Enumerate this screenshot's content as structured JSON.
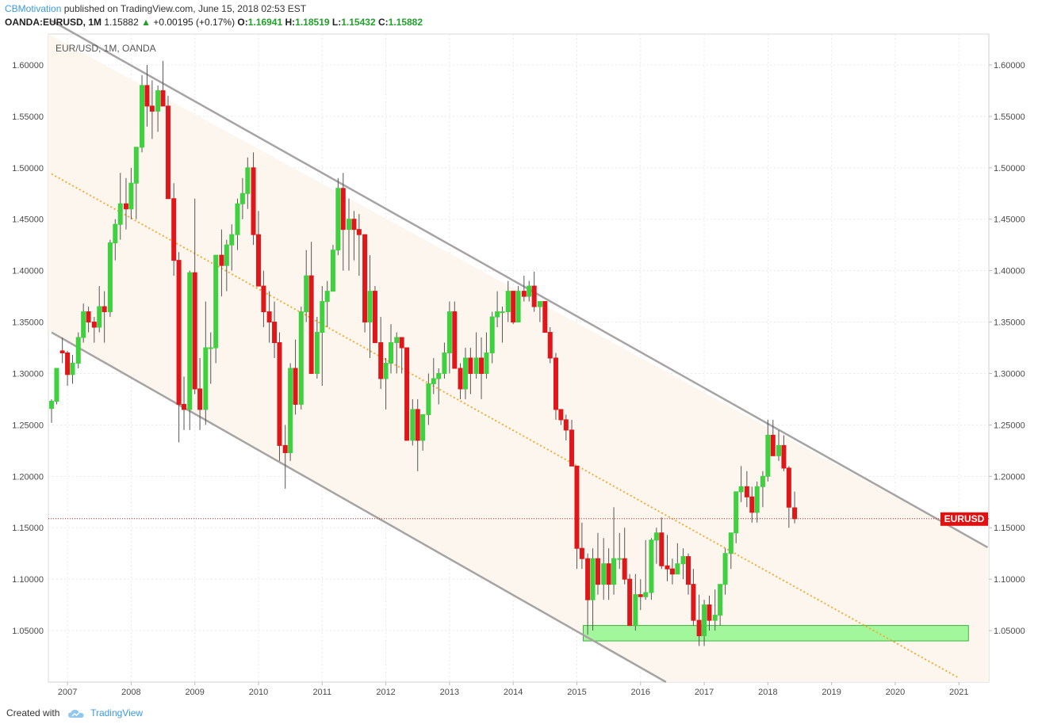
{
  "header": {
    "author": "CBMotivation",
    "published_text": "published on TradingView.com, June 15, 2018 02:53 EST",
    "symbol": "OANDA:EURUSD, 1M",
    "last": "1.15882",
    "change_arrow": "▲",
    "change": "+0.00195 (+0.17%)",
    "open_label": "O:",
    "open": "1.16941",
    "high_label": "H:",
    "high": "1.18519",
    "low_label": "L:",
    "low": "1.15432",
    "close_label": "C:",
    "close": "1.15882"
  },
  "footer": {
    "created_with": "Created with",
    "brand": "TradingView"
  },
  "chart_data": {
    "type": "candlestick",
    "title": "EUR/USD, 1M, OANDA",
    "x_tick_labels": [
      "2007",
      "2008",
      "2009",
      "2010",
      "2011",
      "2012",
      "2013",
      "2014",
      "2015",
      "2016",
      "2017",
      "2018",
      "2019",
      "2020",
      "2021"
    ],
    "y_tick_labels": [
      "1.60000",
      "1.55000",
      "1.50000",
      "1.45000",
      "1.40000",
      "1.35000",
      "1.30000",
      "1.25000",
      "1.20000",
      "1.15000",
      "1.10000",
      "1.05000"
    ],
    "y_ticks": [
      1.6,
      1.55,
      1.5,
      1.45,
      1.4,
      1.35,
      1.3,
      1.25,
      1.2,
      1.15,
      1.1,
      1.05
    ],
    "ylim": [
      1.0,
      1.63
    ],
    "xlim": [
      2006.7,
      2021.47
    ],
    "grid": true,
    "last_price": 1.15882,
    "price_tag": "EURUSD",
    "colors": {
      "up": "#3fd13f",
      "down": "#e0171a",
      "wick": "#555555",
      "channel": "#a7a3a3",
      "channel_fill": "#fcf6ef",
      "midline": "#f5a623",
      "zone_fill": "#a2f79c",
      "zone_border": "#3cb53c",
      "last_price_line": "#c81e1e",
      "tag_bg": "#e31010",
      "grid": "#e8e8e8",
      "axis_text": "#4a4a4a"
    },
    "channel_upper": {
      "x": [
        2006.75,
        2021.45
      ],
      "y": [
        1.643,
        1.131
      ]
    },
    "channel_lower": {
      "x": [
        2006.75,
        2016.4
      ],
      "y": [
        1.34,
        1.0
      ]
    },
    "midline": {
      "x": [
        2006.75,
        2021.0
      ],
      "y": [
        1.494,
        1.004
      ]
    },
    "support_zone": {
      "x": [
        2015.1,
        2021.15
      ],
      "y": [
        1.04,
        1.055
      ]
    },
    "candles": [
      [
        2006.75,
        1.266,
        1.275,
        1.252,
        1.273
      ],
      [
        2006.83,
        1.273,
        1.3,
        1.27,
        1.305
      ],
      [
        2006.92,
        1.322,
        1.335,
        1.31,
        1.32
      ],
      [
        2007.0,
        1.32,
        1.322,
        1.288,
        1.299
      ],
      [
        2007.08,
        1.299,
        1.318,
        1.29,
        1.31
      ],
      [
        2007.17,
        1.31,
        1.34,
        1.305,
        1.335
      ],
      [
        2007.25,
        1.335,
        1.368,
        1.33,
        1.36
      ],
      [
        2007.33,
        1.36,
        1.365,
        1.34,
        1.35
      ],
      [
        2007.42,
        1.35,
        1.355,
        1.33,
        1.345
      ],
      [
        2007.5,
        1.345,
        1.385,
        1.34,
        1.365
      ],
      [
        2007.58,
        1.365,
        1.38,
        1.33,
        1.36
      ],
      [
        2007.67,
        1.36,
        1.43,
        1.355,
        1.427
      ],
      [
        2007.75,
        1.427,
        1.45,
        1.41,
        1.445
      ],
      [
        2007.83,
        1.445,
        1.495,
        1.43,
        1.465
      ],
      [
        2007.92,
        1.465,
        1.49,
        1.44,
        1.46
      ],
      [
        2008.0,
        1.46,
        1.5,
        1.45,
        1.485
      ],
      [
        2008.08,
        1.485,
        1.52,
        1.45,
        1.52
      ],
      [
        2008.17,
        1.52,
        1.59,
        1.515,
        1.58
      ],
      [
        2008.25,
        1.58,
        1.6,
        1.54,
        1.56
      ],
      [
        2008.33,
        1.56,
        1.585,
        1.528,
        1.555
      ],
      [
        2008.42,
        1.555,
        1.58,
        1.535,
        1.575
      ],
      [
        2008.5,
        1.575,
        1.604,
        1.56,
        1.56
      ],
      [
        2008.58,
        1.56,
        1.57,
        1.47,
        1.47
      ],
      [
        2008.67,
        1.47,
        1.485,
        1.395,
        1.41
      ],
      [
        2008.75,
        1.41,
        1.418,
        1.233,
        1.27
      ],
      [
        2008.83,
        1.27,
        1.297,
        1.245,
        1.265
      ],
      [
        2008.92,
        1.265,
        1.4,
        1.245,
        1.398
      ],
      [
        2009.0,
        1.398,
        1.47,
        1.28,
        1.285
      ],
      [
        2009.08,
        1.285,
        1.315,
        1.245,
        1.265
      ],
      [
        2009.17,
        1.265,
        1.37,
        1.25,
        1.325
      ],
      [
        2009.25,
        1.325,
        1.34,
        1.29,
        1.325
      ],
      [
        2009.33,
        1.325,
        1.415,
        1.31,
        1.415
      ],
      [
        2009.42,
        1.415,
        1.44,
        1.375,
        1.405
      ],
      [
        2009.5,
        1.405,
        1.43,
        1.38,
        1.425
      ],
      [
        2009.58,
        1.425,
        1.445,
        1.4,
        1.435
      ],
      [
        2009.67,
        1.435,
        1.47,
        1.42,
        1.465
      ],
      [
        2009.75,
        1.465,
        1.49,
        1.45,
        1.475
      ],
      [
        2009.83,
        1.475,
        1.51,
        1.46,
        1.5
      ],
      [
        2009.92,
        1.5,
        1.515,
        1.425,
        1.435
      ],
      [
        2010.0,
        1.435,
        1.458,
        1.385,
        1.385
      ],
      [
        2010.08,
        1.385,
        1.4,
        1.345,
        1.36
      ],
      [
        2010.17,
        1.36,
        1.38,
        1.33,
        1.35
      ],
      [
        2010.25,
        1.35,
        1.37,
        1.315,
        1.33
      ],
      [
        2010.33,
        1.33,
        1.34,
        1.215,
        1.23
      ],
      [
        2010.42,
        1.23,
        1.25,
        1.188,
        1.223
      ],
      [
        2010.5,
        1.223,
        1.31,
        1.215,
        1.305
      ],
      [
        2010.58,
        1.305,
        1.333,
        1.26,
        1.27
      ],
      [
        2010.67,
        1.27,
        1.365,
        1.265,
        1.36
      ],
      [
        2010.75,
        1.36,
        1.42,
        1.35,
        1.395
      ],
      [
        2010.83,
        1.395,
        1.428,
        1.3,
        1.3
      ],
      [
        2010.92,
        1.3,
        1.355,
        1.295,
        1.34
      ],
      [
        2011.0,
        1.34,
        1.385,
        1.288,
        1.37
      ],
      [
        2011.08,
        1.37,
        1.39,
        1.345,
        1.38
      ],
      [
        2011.17,
        1.38,
        1.425,
        1.38,
        1.42
      ],
      [
        2011.25,
        1.42,
        1.49,
        1.415,
        1.48
      ],
      [
        2011.33,
        1.48,
        1.495,
        1.4,
        1.44
      ],
      [
        2011.42,
        1.44,
        1.47,
        1.4,
        1.45
      ],
      [
        2011.5,
        1.45,
        1.458,
        1.41,
        1.44
      ],
      [
        2011.58,
        1.44,
        1.455,
        1.395,
        1.435
      ],
      [
        2011.67,
        1.435,
        1.435,
        1.34,
        1.35
      ],
      [
        2011.75,
        1.35,
        1.415,
        1.315,
        1.38
      ],
      [
        2011.83,
        1.38,
        1.385,
        1.33,
        1.33
      ],
      [
        2011.92,
        1.33,
        1.355,
        1.285,
        1.295
      ],
      [
        2012.0,
        1.295,
        1.315,
        1.265,
        1.31
      ],
      [
        2012.08,
        1.31,
        1.348,
        1.3,
        1.33
      ],
      [
        2012.17,
        1.33,
        1.34,
        1.3,
        1.335
      ],
      [
        2012.25,
        1.335,
        1.33,
        1.3,
        1.325
      ],
      [
        2012.33,
        1.325,
        1.325,
        1.235,
        1.235
      ],
      [
        2012.42,
        1.235,
        1.275,
        1.23,
        1.265
      ],
      [
        2012.5,
        1.265,
        1.275,
        1.205,
        1.235
      ],
      [
        2012.58,
        1.235,
        1.26,
        1.225,
        1.26
      ],
      [
        2012.67,
        1.26,
        1.3,
        1.25,
        1.29
      ],
      [
        2012.75,
        1.29,
        1.315,
        1.28,
        1.295
      ],
      [
        2012.83,
        1.295,
        1.305,
        1.27,
        1.3
      ],
      [
        2012.92,
        1.3,
        1.33,
        1.295,
        1.32
      ],
      [
        2013.0,
        1.32,
        1.37,
        1.3,
        1.36
      ],
      [
        2013.08,
        1.36,
        1.37,
        1.305,
        1.305
      ],
      [
        2013.17,
        1.305,
        1.31,
        1.275,
        1.285
      ],
      [
        2013.25,
        1.285,
        1.325,
        1.275,
        1.315
      ],
      [
        2013.33,
        1.315,
        1.325,
        1.28,
        1.3
      ],
      [
        2013.42,
        1.3,
        1.34,
        1.295,
        1.315
      ],
      [
        2013.5,
        1.315,
        1.335,
        1.275,
        1.3
      ],
      [
        2013.58,
        1.3,
        1.34,
        1.295,
        1.32
      ],
      [
        2013.67,
        1.32,
        1.36,
        1.31,
        1.355
      ],
      [
        2013.75,
        1.355,
        1.38,
        1.345,
        1.36
      ],
      [
        2013.83,
        1.36,
        1.365,
        1.33,
        1.36
      ],
      [
        2013.92,
        1.36,
        1.39,
        1.35,
        1.38
      ],
      [
        2014.0,
        1.38,
        1.38,
        1.348,
        1.35
      ],
      [
        2014.08,
        1.35,
        1.385,
        1.35,
        1.38
      ],
      [
        2014.17,
        1.38,
        1.395,
        1.37,
        1.375
      ],
      [
        2014.25,
        1.375,
        1.39,
        1.37,
        1.385
      ],
      [
        2014.33,
        1.385,
        1.399,
        1.36,
        1.365
      ],
      [
        2014.42,
        1.365,
        1.37,
        1.35,
        1.37
      ],
      [
        2014.5,
        1.37,
        1.37,
        1.34,
        1.34
      ],
      [
        2014.58,
        1.34,
        1.345,
        1.31,
        1.315
      ],
      [
        2014.67,
        1.315,
        1.32,
        1.255,
        1.265
      ],
      [
        2014.75,
        1.265,
        1.265,
        1.25,
        1.255
      ],
      [
        2014.83,
        1.255,
        1.26,
        1.235,
        1.245
      ],
      [
        2014.92,
        1.245,
        1.255,
        1.21,
        1.21
      ],
      [
        2015.0,
        1.21,
        1.21,
        1.11,
        1.13
      ],
      [
        2015.08,
        1.13,
        1.155,
        1.11,
        1.12
      ],
      [
        2015.17,
        1.12,
        1.125,
        1.046,
        1.08
      ],
      [
        2015.25,
        1.08,
        1.13,
        1.05,
        1.12
      ],
      [
        2015.33,
        1.12,
        1.145,
        1.085,
        1.095
      ],
      [
        2015.42,
        1.095,
        1.14,
        1.08,
        1.115
      ],
      [
        2015.5,
        1.115,
        1.13,
        1.08,
        1.095
      ],
      [
        2015.58,
        1.095,
        1.17,
        1.085,
        1.12
      ],
      [
        2015.67,
        1.12,
        1.145,
        1.11,
        1.12
      ],
      [
        2015.75,
        1.12,
        1.15,
        1.095,
        1.1
      ],
      [
        2015.83,
        1.1,
        1.105,
        1.055,
        1.055
      ],
      [
        2015.92,
        1.055,
        1.105,
        1.05,
        1.085
      ],
      [
        2016.0,
        1.085,
        1.1,
        1.07,
        1.083
      ],
      [
        2016.08,
        1.083,
        1.138,
        1.08,
        1.087
      ],
      [
        2016.17,
        1.087,
        1.14,
        1.08,
        1.138
      ],
      [
        2016.25,
        1.138,
        1.15,
        1.115,
        1.145
      ],
      [
        2016.33,
        1.145,
        1.16,
        1.11,
        1.113
      ],
      [
        2016.42,
        1.113,
        1.143,
        1.098,
        1.11
      ],
      [
        2016.5,
        1.11,
        1.12,
        1.095,
        1.105
      ],
      [
        2016.58,
        1.105,
        1.135,
        1.105,
        1.115
      ],
      [
        2016.67,
        1.115,
        1.13,
        1.1,
        1.122
      ],
      [
        2016.75,
        1.122,
        1.125,
        1.085,
        1.095
      ],
      [
        2016.83,
        1.095,
        1.11,
        1.055,
        1.06
      ],
      [
        2016.92,
        1.06,
        1.085,
        1.035,
        1.045
      ],
      [
        2017.0,
        1.045,
        1.08,
        1.035,
        1.075
      ],
      [
        2017.08,
        1.075,
        1.084,
        1.05,
        1.06
      ],
      [
        2017.17,
        1.06,
        1.09,
        1.05,
        1.065
      ],
      [
        2017.25,
        1.065,
        1.095,
        1.055,
        1.095
      ],
      [
        2017.33,
        1.095,
        1.13,
        1.085,
        1.125
      ],
      [
        2017.42,
        1.125,
        1.145,
        1.11,
        1.145
      ],
      [
        2017.5,
        1.145,
        1.185,
        1.135,
        1.185
      ],
      [
        2017.58,
        1.185,
        1.21,
        1.175,
        1.19
      ],
      [
        2017.67,
        1.19,
        1.205,
        1.17,
        1.18
      ],
      [
        2017.75,
        1.18,
        1.19,
        1.155,
        1.165
      ],
      [
        2017.83,
        1.165,
        1.195,
        1.155,
        1.19
      ],
      [
        2017.92,
        1.19,
        1.205,
        1.17,
        1.2
      ],
      [
        2018.0,
        1.2,
        1.255,
        1.195,
        1.24
      ],
      [
        2018.08,
        1.24,
        1.255,
        1.22,
        1.22
      ],
      [
        2018.17,
        1.22,
        1.245,
        1.215,
        1.23
      ],
      [
        2018.25,
        1.23,
        1.24,
        1.205,
        1.208
      ],
      [
        2018.33,
        1.208,
        1.21,
        1.15,
        1.17
      ],
      [
        2018.42,
        1.1694,
        1.1852,
        1.1543,
        1.1588
      ]
    ]
  }
}
